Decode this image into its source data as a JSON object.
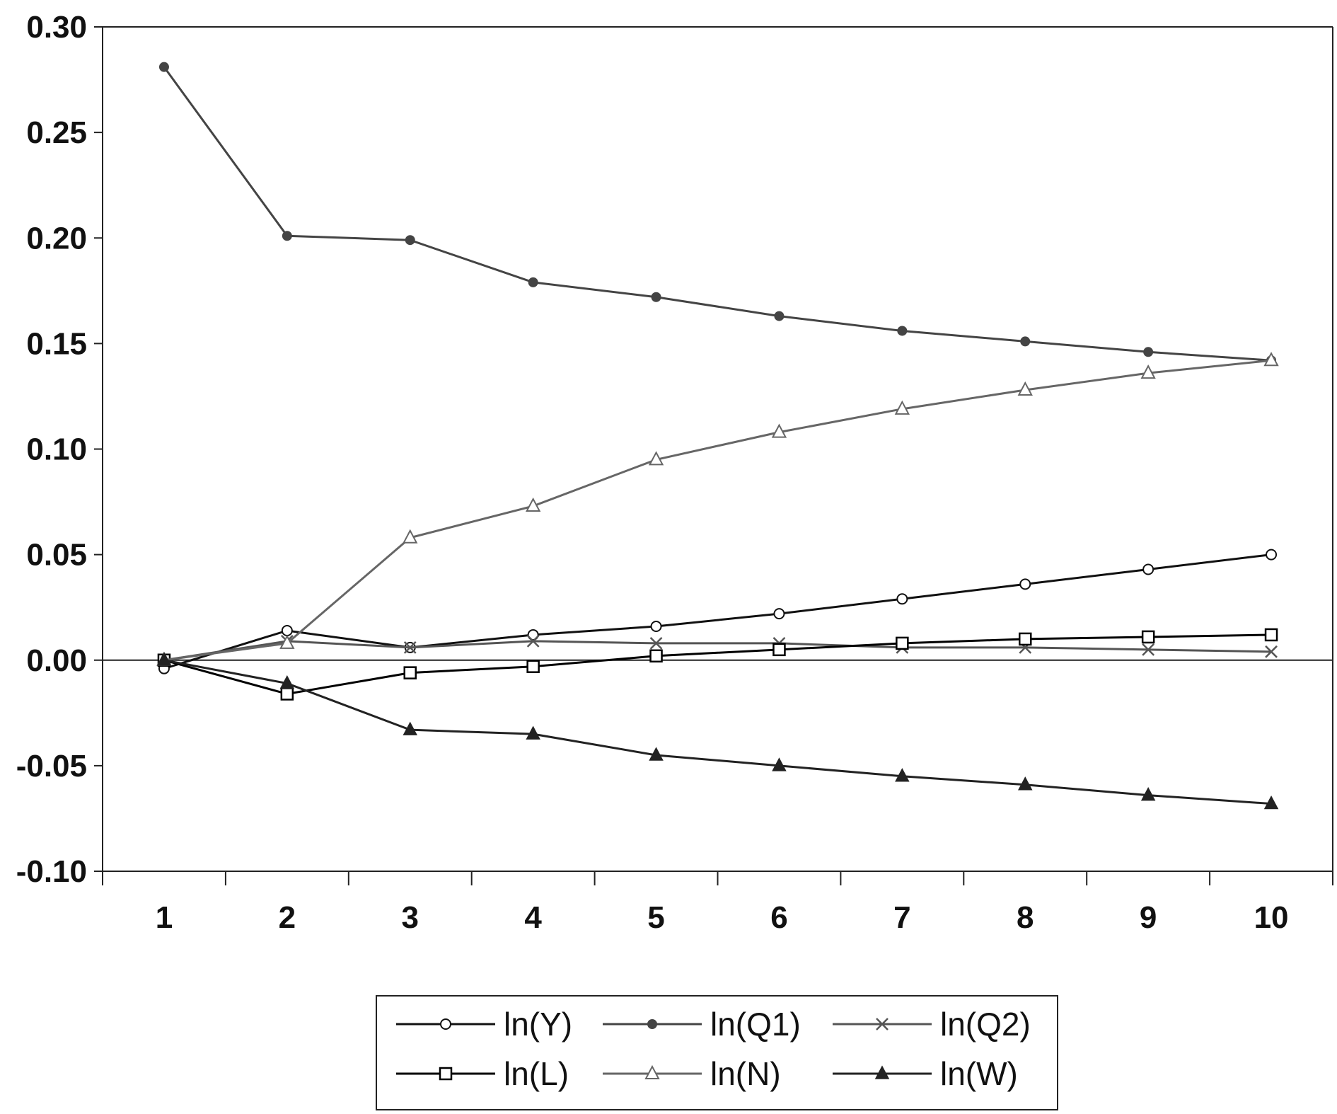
{
  "chart_data": {
    "type": "line",
    "title": "",
    "xlabel": "",
    "ylabel": "",
    "x": [
      1,
      2,
      3,
      4,
      5,
      6,
      7,
      8,
      9,
      10
    ],
    "xticks": [
      "1",
      "2",
      "3",
      "4",
      "5",
      "6",
      "7",
      "8",
      "9",
      "10"
    ],
    "ylim": [
      -0.1,
      0.3
    ],
    "yticks": [
      "0.30",
      "0.25",
      "0.20",
      "0.15",
      "0.10",
      "0.05",
      "0.00",
      "-0.05",
      "-0.10"
    ],
    "ytick_values": [
      0.3,
      0.25,
      0.2,
      0.15,
      0.1,
      0.05,
      0.0,
      -0.05,
      -0.1
    ],
    "zero_line": true,
    "grid": false,
    "legend_position": "bottom-center",
    "series": [
      {
        "name": "ln(Y)",
        "marker": "open-circle",
        "color": "#111111",
        "values": [
          -0.004,
          0.014,
          0.006,
          0.012,
          0.016,
          0.022,
          0.029,
          0.036,
          0.043,
          0.05
        ]
      },
      {
        "name": "ln(Q1)",
        "marker": "filled-circle",
        "color": "#444444",
        "values": [
          0.281,
          0.201,
          0.199,
          0.179,
          0.172,
          0.163,
          0.156,
          0.151,
          0.146,
          0.142
        ]
      },
      {
        "name": "ln(Q2)",
        "marker": "x",
        "color": "#555555",
        "values": [
          0.0,
          0.009,
          0.006,
          0.009,
          0.008,
          0.008,
          0.006,
          0.006,
          0.005,
          0.004
        ]
      },
      {
        "name": "ln(L)",
        "marker": "open-square",
        "color": "#000000",
        "values": [
          0.0,
          -0.016,
          -0.006,
          -0.003,
          0.002,
          0.005,
          0.008,
          0.01,
          0.011,
          0.012
        ]
      },
      {
        "name": "ln(N)",
        "marker": "open-triangle",
        "color": "#666666",
        "values": [
          0.0,
          0.008,
          0.058,
          0.073,
          0.095,
          0.108,
          0.119,
          0.128,
          0.136,
          0.142
        ]
      },
      {
        "name": "ln(W)",
        "marker": "filled-triangle",
        "color": "#222222",
        "values": [
          0.0,
          -0.011,
          -0.033,
          -0.035,
          -0.045,
          -0.05,
          -0.055,
          -0.059,
          -0.064,
          -0.068
        ]
      }
    ]
  }
}
